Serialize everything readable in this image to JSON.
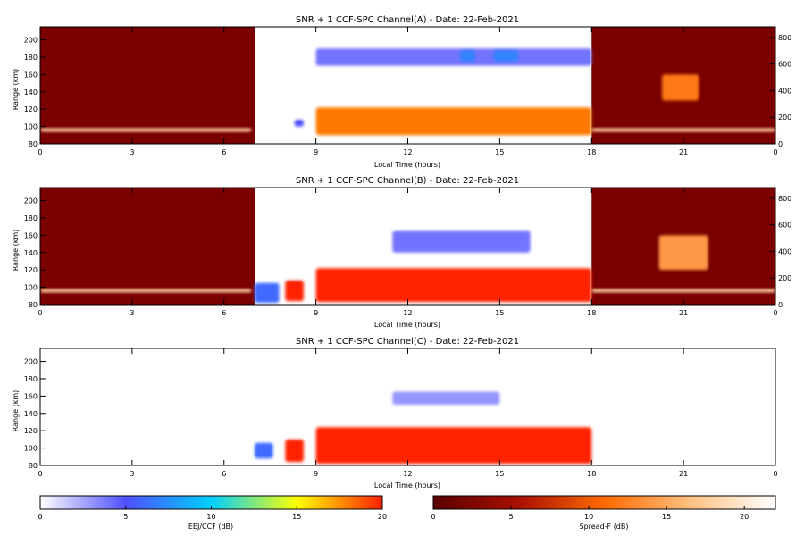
{
  "chart_data": [
    {
      "type": "heatmap",
      "title": "SNR + 1 CCF-SPC Channel(A) - Date: 22-Feb-2021",
      "xlabel": "Local Time (hours)",
      "ylabel": "Range (km)",
      "xlim": [
        0,
        24
      ],
      "ylim": [
        80,
        215
      ],
      "xticks": [
        "0",
        "3",
        "6",
        "9",
        "12",
        "15",
        "18",
        "21",
        "0"
      ],
      "yticks": [
        "80",
        "100",
        "120",
        "140",
        "160",
        "180",
        "200"
      ],
      "y2ticks": [
        "0",
        "200",
        "400",
        "600",
        "800"
      ],
      "segments": [
        {
          "name": "Spread-F",
          "x": [
            0,
            7
          ],
          "background": "#7a0000"
        },
        {
          "name": "EEJ/CCF",
          "x": [
            7,
            18
          ],
          "background": "#ffffff"
        },
        {
          "name": "Spread-F",
          "x": [
            18,
            24
          ],
          "background": "#7a0000"
        }
      ],
      "features": [
        {
          "colorbar": "Spread-F",
          "x": [
            0,
            6.9
          ],
          "y": [
            94,
            98
          ],
          "value_db": 18
        },
        {
          "colorbar": "EEJ/CCF",
          "x": [
            8.3,
            8.6
          ],
          "y": [
            100,
            108
          ],
          "value_db": 5
        },
        {
          "colorbar": "EEJ/CCF",
          "x": [
            9,
            18
          ],
          "y": [
            90,
            122
          ],
          "value_db": 18
        },
        {
          "colorbar": "EEJ/CCF",
          "x": [
            9,
            18
          ],
          "y": [
            170,
            190
          ],
          "value_db": 4
        },
        {
          "colorbar": "EEJ/CCF",
          "x": [
            13.7,
            14.2
          ],
          "y": [
            175,
            188
          ],
          "value_db": 7
        },
        {
          "colorbar": "EEJ/CCF",
          "x": [
            14.8,
            15.6
          ],
          "y": [
            175,
            188
          ],
          "value_db": 7
        },
        {
          "colorbar": "Spread-F",
          "x": [
            18,
            24
          ],
          "y": [
            94,
            98
          ],
          "value_db": 18
        },
        {
          "colorbar": "Spread-F",
          "x": [
            20.3,
            21.5
          ],
          "y": [
            130,
            160
          ],
          "value_db": 12
        }
      ]
    },
    {
      "type": "heatmap",
      "title": "SNR + 1 CCF-SPC Channel(B) - Date: 22-Feb-2021",
      "xlabel": "Local Time (hours)",
      "ylabel": "Range (km)",
      "xlim": [
        0,
        24
      ],
      "ylim": [
        80,
        215
      ],
      "xticks": [
        "0",
        "3",
        "6",
        "9",
        "12",
        "15",
        "18",
        "21",
        "0"
      ],
      "yticks": [
        "80",
        "100",
        "120",
        "140",
        "160",
        "180",
        "200"
      ],
      "y2ticks": [
        "0",
        "200",
        "400",
        "600",
        "800"
      ],
      "segments": [
        {
          "name": "Spread-F",
          "x": [
            0,
            7
          ],
          "background": "#7a0000"
        },
        {
          "name": "EEJ/CCF",
          "x": [
            7,
            18
          ],
          "background": "#ffffff"
        },
        {
          "name": "Spread-F",
          "x": [
            18,
            24
          ],
          "background": "#7a0000"
        }
      ],
      "features": [
        {
          "colorbar": "Spread-F",
          "x": [
            0,
            6.9
          ],
          "y": [
            94,
            98
          ],
          "value_db": 18
        },
        {
          "colorbar": "EEJ/CCF",
          "x": [
            7,
            7.8
          ],
          "y": [
            82,
            105
          ],
          "value_db": 6
        },
        {
          "colorbar": "EEJ/CCF",
          "x": [
            8,
            8.6
          ],
          "y": [
            84,
            108
          ],
          "value_db": 20
        },
        {
          "colorbar": "EEJ/CCF",
          "x": [
            9,
            18
          ],
          "y": [
            83,
            122
          ],
          "value_db": 20
        },
        {
          "colorbar": "EEJ/CCF",
          "x": [
            11.5,
            16
          ],
          "y": [
            140,
            165
          ],
          "value_db": 4
        },
        {
          "colorbar": "Spread-F",
          "x": [
            18,
            24
          ],
          "y": [
            94,
            98
          ],
          "value_db": 18
        },
        {
          "colorbar": "Spread-F",
          "x": [
            20.2,
            21.8
          ],
          "y": [
            120,
            160
          ],
          "value_db": 14
        }
      ]
    },
    {
      "type": "heatmap",
      "title": "SNR + 1 CCF-SPC Channel(C) - Date: 22-Feb-2021",
      "xlabel": "Local Time (hours)",
      "ylabel": "Range (km)",
      "xlim": [
        0,
        24
      ],
      "ylim": [
        80,
        215
      ],
      "xticks": [
        "0",
        "3",
        "6",
        "9",
        "12",
        "15",
        "18",
        "21",
        "0"
      ],
      "yticks": [
        "80",
        "100",
        "120",
        "140",
        "160",
        "180",
        "200"
      ],
      "segments": [
        {
          "name": "EEJ/CCF",
          "x": [
            0,
            24
          ],
          "background": "#ffffff"
        }
      ],
      "features": [
        {
          "colorbar": "EEJ/CCF",
          "x": [
            7,
            7.6
          ],
          "y": [
            88,
            106
          ],
          "value_db": 6
        },
        {
          "colorbar": "EEJ/CCF",
          "x": [
            8,
            8.6
          ],
          "y": [
            84,
            110
          ],
          "value_db": 20
        },
        {
          "colorbar": "EEJ/CCF",
          "x": [
            9,
            18
          ],
          "y": [
            82,
            124
          ],
          "value_db": 20
        },
        {
          "colorbar": "EEJ/CCF",
          "x": [
            11.5,
            15
          ],
          "y": [
            150,
            165
          ],
          "value_db": 3
        }
      ]
    }
  ],
  "colorbars": [
    {
      "name": "EEJ/CCF",
      "label": "EEJ/CCF (dB)",
      "ticks": [
        "0",
        "5",
        "10",
        "15",
        "20"
      ],
      "range": [
        0,
        20
      ],
      "stops": [
        "#ffffff",
        "#5050ff",
        "#00d0ff",
        "#ffff00",
        "#ff2000"
      ]
    },
    {
      "name": "Spread-F",
      "label": "Spread-F (dB)",
      "ticks": [
        "0",
        "5",
        "10",
        "15",
        "20"
      ],
      "range": [
        0,
        22
      ],
      "stops": [
        "#5a0000",
        "#a81000",
        "#ff6a00",
        "#ffc080",
        "#ffffff"
      ]
    }
  ]
}
